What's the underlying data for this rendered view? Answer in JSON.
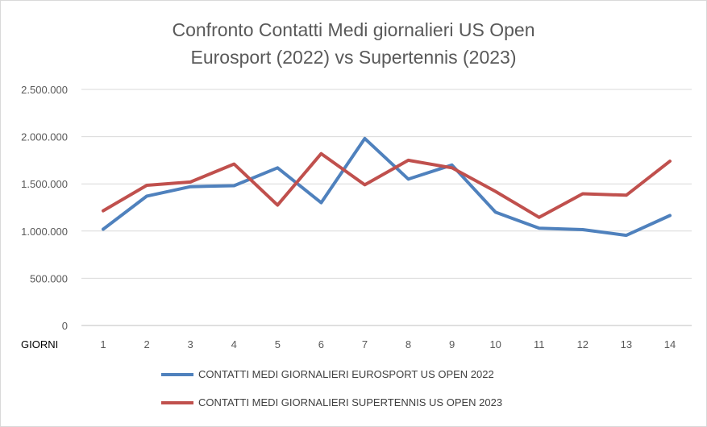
{
  "chart_data": {
    "type": "line",
    "title_line1": "Confronto Contatti Medi giornalieri US Open",
    "title_line2": "Eurosport (2022) vs Supertennis (2023)",
    "xlabel": "GIORNI",
    "categories": [
      "1",
      "2",
      "3",
      "4",
      "5",
      "6",
      "7",
      "8",
      "9",
      "10",
      "11",
      "12",
      "13",
      "14"
    ],
    "ylim": [
      0,
      2500000
    ],
    "ytick_values": [
      0,
      500000,
      1000000,
      1500000,
      2000000,
      2500000
    ],
    "ytick_labels": [
      "0",
      "500.000",
      "1.000.000",
      "1.500.000",
      "2.000.000",
      "2.500.000"
    ],
    "grid": true,
    "legend_position": "bottom",
    "series": [
      {
        "name": "CONTATTI MEDI GIORNALIERI EUROSPORT US OPEN 2022",
        "color": "#4f81bd",
        "values": [
          1020000,
          1370000,
          1470000,
          1480000,
          1670000,
          1300000,
          1980000,
          1550000,
          1700000,
          1200000,
          1030000,
          1015000,
          955000,
          1165000
        ]
      },
      {
        "name": "CONTATTI MEDI GIORNALIERI SUPERTENNIS US OPEN 2023",
        "color": "#c0504d",
        "values": [
          1215000,
          1485000,
          1520000,
          1710000,
          1275000,
          1820000,
          1490000,
          1750000,
          1670000,
          1420000,
          1145000,
          1395000,
          1380000,
          1740000
        ]
      }
    ]
  }
}
